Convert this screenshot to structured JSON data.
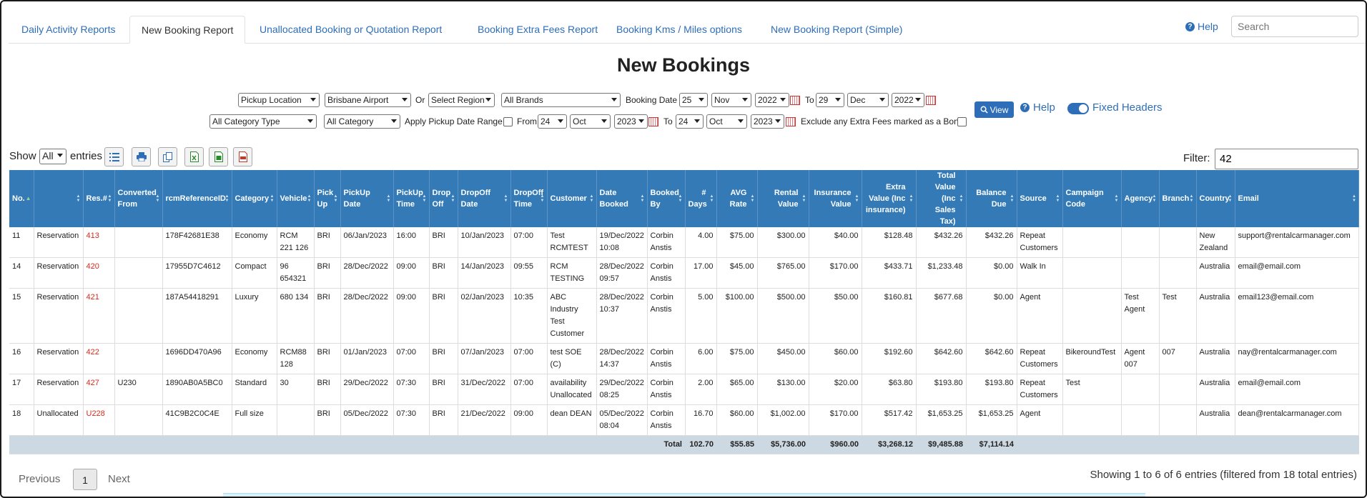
{
  "tabs": [
    {
      "label": "Daily Activity Reports",
      "active": false
    },
    {
      "label": "New Booking Report",
      "active": true
    },
    {
      "label": "Unallocated Booking or Quotation Report",
      "active": false
    },
    {
      "label": "Booking Extra Fees Report",
      "active": false
    },
    {
      "label": "Booking Kms / Miles options",
      "active": false
    },
    {
      "label": "New Booking Report (Simple)",
      "active": false
    }
  ],
  "header": {
    "help_label": "Help",
    "search_placeholder": "Search",
    "title": "New Bookings"
  },
  "filters": {
    "location_type": "Pickup Location",
    "location": "Brisbane Airport",
    "or_label": "Or",
    "region": "Select Region",
    "brand": "All Brands",
    "booking_date_label": "Booking Date",
    "from_day": "25",
    "from_month": "Nov",
    "from_year": "2022",
    "to_label": "To",
    "to_day": "29",
    "to_month": "Dec",
    "to_year": "2022",
    "category_type": "All Category Type",
    "category": "All Category",
    "apply_pickup_label": "Apply Pickup Date Range",
    "from_label": "From",
    "pickup_from_day": "24",
    "pickup_from_month": "Oct",
    "pickup_from_year": "2023",
    "pickup_to_day": "24",
    "pickup_to_month": "Oct",
    "pickup_to_year": "2023",
    "exclude_label": "Exclude any Extra Fees marked as a Bond",
    "view_label": "View",
    "help_label": "Help",
    "fixed_headers_label": "Fixed Headers"
  },
  "toolbar": {
    "show_label": "Show",
    "show_value": "All",
    "entries_label": "entries",
    "filter_label": "Filter:",
    "filter_value": "42"
  },
  "colors": {
    "accent": "#337ab7",
    "res_link": "#d52b1e",
    "total_row": "#ccd9e3"
  },
  "table": {
    "columns": [
      "No.",
      "",
      "Res.#",
      "Converted From",
      "rcmReferenceID",
      "Category",
      "Vehicle",
      "Pick Up",
      "PickUp Date",
      "PickUp Time",
      "Drop Off",
      "DropOff Date",
      "DropOff Time",
      "Customer",
      "Date Booked",
      "Booked By",
      "# Days",
      "AVG Rate",
      "Rental Value",
      "Insurance Value",
      "Extra Value (Inc insurance)",
      "Total Value (Inc Sales Tax)",
      "Balance Due",
      "Source",
      "Campaign Code",
      "Agency",
      "Branch",
      "Country",
      "Email"
    ],
    "rows": [
      [
        "11",
        "Reservation",
        "413",
        "",
        "178F42681E38",
        "Economy",
        "RCM 221 126",
        "BRI",
        "06/Jan/2023",
        "16:00",
        "BRI",
        "10/Jan/2023",
        "07:00",
        "Test RCMTEST",
        "19/Dec/2022 10:08",
        "Corbin Anstis",
        "4.00",
        "$75.00",
        "$300.00",
        "$40.00",
        "$128.48",
        "$432.26",
        "$432.26",
        "Repeat Customers",
        "",
        "",
        "",
        "New Zealand",
        "support@rentalcarmanager.com"
      ],
      [
        "14",
        "Reservation",
        "420",
        "",
        "17955D7C4612",
        "Compact",
        "96 654321",
        "BRI",
        "28/Dec/2022",
        "09:00",
        "BRI",
        "14/Jan/2023",
        "09:55",
        "RCM TESTING",
        "28/Dec/2022 09:57",
        "Corbin Anstis",
        "17.00",
        "$45.00",
        "$765.00",
        "$170.00",
        "$433.71",
        "$1,233.48",
        "$0.00",
        "Walk In",
        "",
        "",
        "",
        "Australia",
        "email@email.com"
      ],
      [
        "15",
        "Reservation",
        "421",
        "",
        "187A54418291",
        "Luxury",
        "680 134",
        "BRI",
        "28/Dec/2022",
        "09:00",
        "BRI",
        "02/Jan/2023",
        "10:35",
        "ABC Industry Test Customer",
        "28/Dec/2022 10:37",
        "Corbin Anstis",
        "5.00",
        "$100.00",
        "$500.00",
        "$50.00",
        "$160.81",
        "$677.68",
        "$0.00",
        "Agent",
        "",
        "Test Agent",
        "Test",
        "Australia",
        "email123@email.com"
      ],
      [
        "16",
        "Reservation",
        "422",
        "",
        "1696DD470A96",
        "Economy",
        "RCM88 128",
        "BRI",
        "01/Jan/2023",
        "07:00",
        "BRI",
        "07/Jan/2023",
        "07:00",
        "test SOE (C)",
        "28/Dec/2022 14:37",
        "Corbin Anstis",
        "6.00",
        "$75.00",
        "$450.00",
        "$60.00",
        "$192.60",
        "$642.60",
        "$642.60",
        "Repeat Customers",
        "BikeroundTest",
        "Agent 007",
        "007",
        "Australia",
        "nay@rentalcarmanager.com"
      ],
      [
        "17",
        "Reservation",
        "427",
        "U230",
        "1890AB0A5BC0",
        "Standard",
        "30",
        "BRI",
        "29/Dec/2022",
        "07:30",
        "BRI",
        "31/Dec/2022",
        "07:00",
        "availability Unallocated",
        "29/Dec/2022 08:25",
        "Corbin Anstis",
        "2.00",
        "$65.00",
        "$130.00",
        "$20.00",
        "$63.80",
        "$193.80",
        "$193.80",
        "Repeat Customers",
        "Test",
        "",
        "",
        "Australia",
        "email@email.com"
      ],
      [
        "18",
        "Unallocated",
        "U228",
        "",
        "41C9B2C0C4E",
        "Full size",
        "",
        "BRI",
        "05/Dec/2022",
        "07:30",
        "BRI",
        "21/Dec/2022",
        "09:00",
        "dean DEAN",
        "05/Dec/2022 08:04",
        "Corbin Anstis",
        "16.70",
        "$60.00",
        "$1,002.00",
        "$170.00",
        "$517.42",
        "$1,653.25",
        "$1,653.25",
        "Agent",
        "",
        "",
        "",
        "Australia",
        "dean@rentalcarmanager.com"
      ]
    ],
    "totals": {
      "label": "Total",
      "days": "102.70",
      "avg_rate": "$55.85",
      "rental": "$5,736.00",
      "insurance": "$960.00",
      "extra": "$3,268.12",
      "total": "$9,485.88",
      "balance": "$7,114.14"
    }
  },
  "pagination": {
    "previous": "Previous",
    "page": "1",
    "next": "Next",
    "info": "Showing 1 to 6 of 6 entries (filtered from 18 total entries)"
  }
}
